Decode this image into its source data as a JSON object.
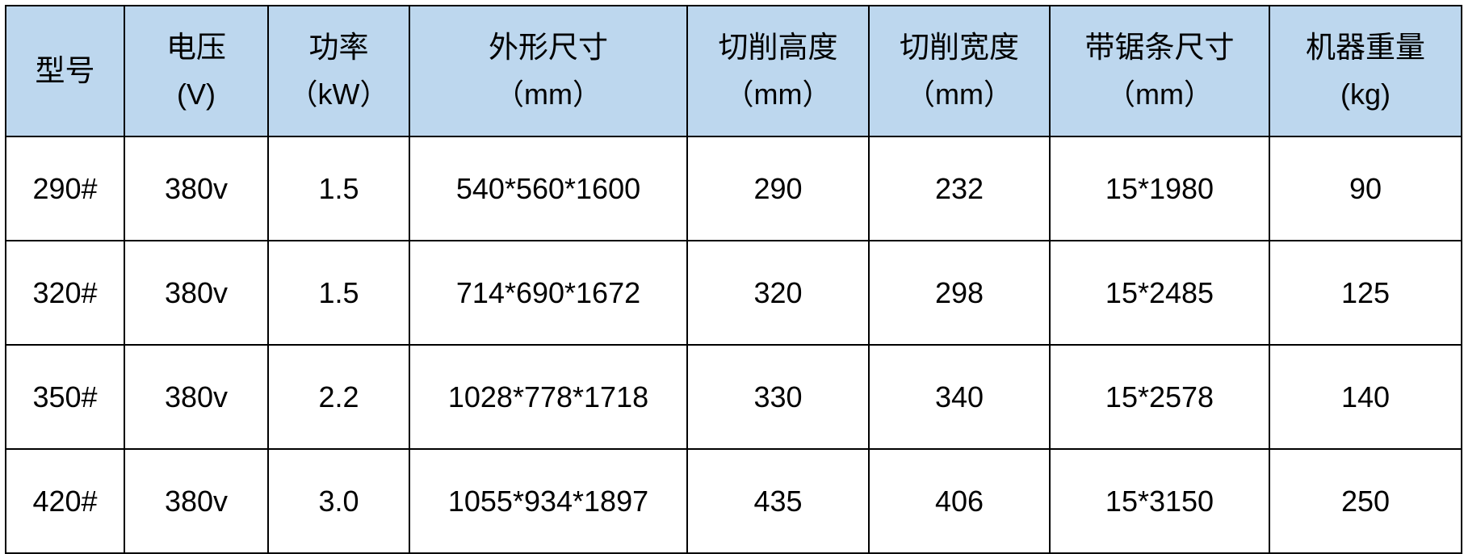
{
  "table": {
    "header_bg": "#bdd7ee",
    "columns": [
      {
        "label": "型号",
        "unit": ""
      },
      {
        "label": "电压",
        "unit": "(V)"
      },
      {
        "label": "功率",
        "unit": "（kW）"
      },
      {
        "label": "外形尺寸",
        "unit": "（mm）"
      },
      {
        "label": "切削高度",
        "unit": "（mm）"
      },
      {
        "label": "切削宽度",
        "unit": "（mm）"
      },
      {
        "label": "带锯条尺寸",
        "unit": "（mm）"
      },
      {
        "label": "机器重量",
        "unit": "(kg)"
      }
    ],
    "rows": [
      [
        "290#",
        "380v",
        "1.5",
        "540*560*1600",
        "290",
        "232",
        "15*1980",
        "90"
      ],
      [
        "320#",
        "380v",
        "1.5",
        "714*690*1672",
        "320",
        "298",
        "15*2485",
        "125"
      ],
      [
        "350#",
        "380v",
        "2.2",
        "1028*778*1718",
        "330",
        "340",
        "15*2578",
        "140"
      ],
      [
        "420#",
        "380v",
        "3.0",
        "1055*934*1897",
        "435",
        "406",
        "15*3150",
        "250"
      ]
    ]
  }
}
